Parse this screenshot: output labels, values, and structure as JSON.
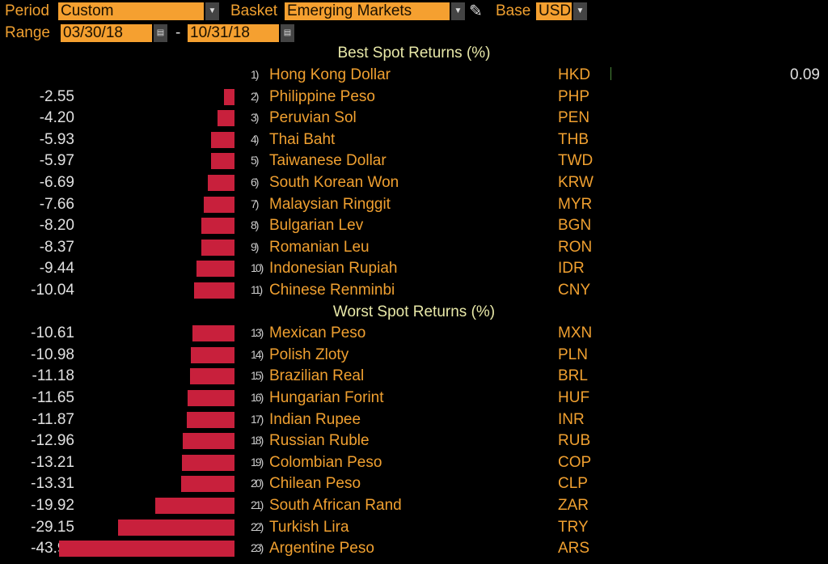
{
  "controls": {
    "period_label": "Period",
    "period_value": "Custom",
    "basket_label": "Basket",
    "basket_value": "Emerging Markets",
    "base_label": "Base",
    "base_value": "USD",
    "range_label": "Range",
    "range_start": "03/30/18",
    "range_sep": "-",
    "range_end": "10/31/18"
  },
  "colors": {
    "negative_bar": "#c8203c",
    "positive_bar": "#4a8a3a",
    "label": "#f0a030",
    "header": "#e8e8a8"
  },
  "chart_data": {
    "type": "bar",
    "orientation": "horizontal",
    "best_title": "Best Spot Returns (%)",
    "worst_title": "Worst Spot Returns (%)",
    "best": [
      {
        "rank": "1)",
        "name": "Hong Kong Dollar",
        "code": "HKD",
        "value": 0.09
      },
      {
        "rank": "2)",
        "name": "Philippine Peso",
        "code": "PHP",
        "value": -2.55
      },
      {
        "rank": "3)",
        "name": "Peruvian Sol",
        "code": "PEN",
        "value": -4.2
      },
      {
        "rank": "4)",
        "name": "Thai Baht",
        "code": "THB",
        "value": -5.93
      },
      {
        "rank": "5)",
        "name": "Taiwanese Dollar",
        "code": "TWD",
        "value": -5.97
      },
      {
        "rank": "6)",
        "name": "South Korean Won",
        "code": "KRW",
        "value": -6.69
      },
      {
        "rank": "7)",
        "name": "Malaysian Ringgit",
        "code": "MYR",
        "value": -7.66
      },
      {
        "rank": "8)",
        "name": "Bulgarian Lev",
        "code": "BGN",
        "value": -8.2
      },
      {
        "rank": "9)",
        "name": "Romanian Leu",
        "code": "RON",
        "value": -8.37
      },
      {
        "rank": "10)",
        "name": "Indonesian Rupiah",
        "code": "IDR",
        "value": -9.44
      },
      {
        "rank": "11)",
        "name": "Chinese Renminbi",
        "code": "CNY",
        "value": -10.04
      }
    ],
    "worst": [
      {
        "rank": "13)",
        "name": "Mexican Peso",
        "code": "MXN",
        "value": -10.61
      },
      {
        "rank": "14)",
        "name": "Polish Zloty",
        "code": "PLN",
        "value": -10.98
      },
      {
        "rank": "15)",
        "name": "Brazilian Real",
        "code": "BRL",
        "value": -11.18
      },
      {
        "rank": "16)",
        "name": "Hungarian Forint",
        "code": "HUF",
        "value": -11.65
      },
      {
        "rank": "17)",
        "name": "Indian Rupee",
        "code": "INR",
        "value": -11.87
      },
      {
        "rank": "18)",
        "name": "Russian Ruble",
        "code": "RUB",
        "value": -12.96
      },
      {
        "rank": "19)",
        "name": "Colombian Peso",
        "code": "COP",
        "value": -13.21
      },
      {
        "rank": "20)",
        "name": "Chilean Peso",
        "code": "CLP",
        "value": -13.31
      },
      {
        "rank": "21)",
        "name": "South African Rand",
        "code": "ZAR",
        "value": -19.92
      },
      {
        "rank": "22)",
        "name": "Turkish Lira",
        "code": "TRY",
        "value": -29.15
      },
      {
        "rank": "23)",
        "name": "Argentine Peso",
        "code": "ARS",
        "value": -43.91
      }
    ]
  }
}
